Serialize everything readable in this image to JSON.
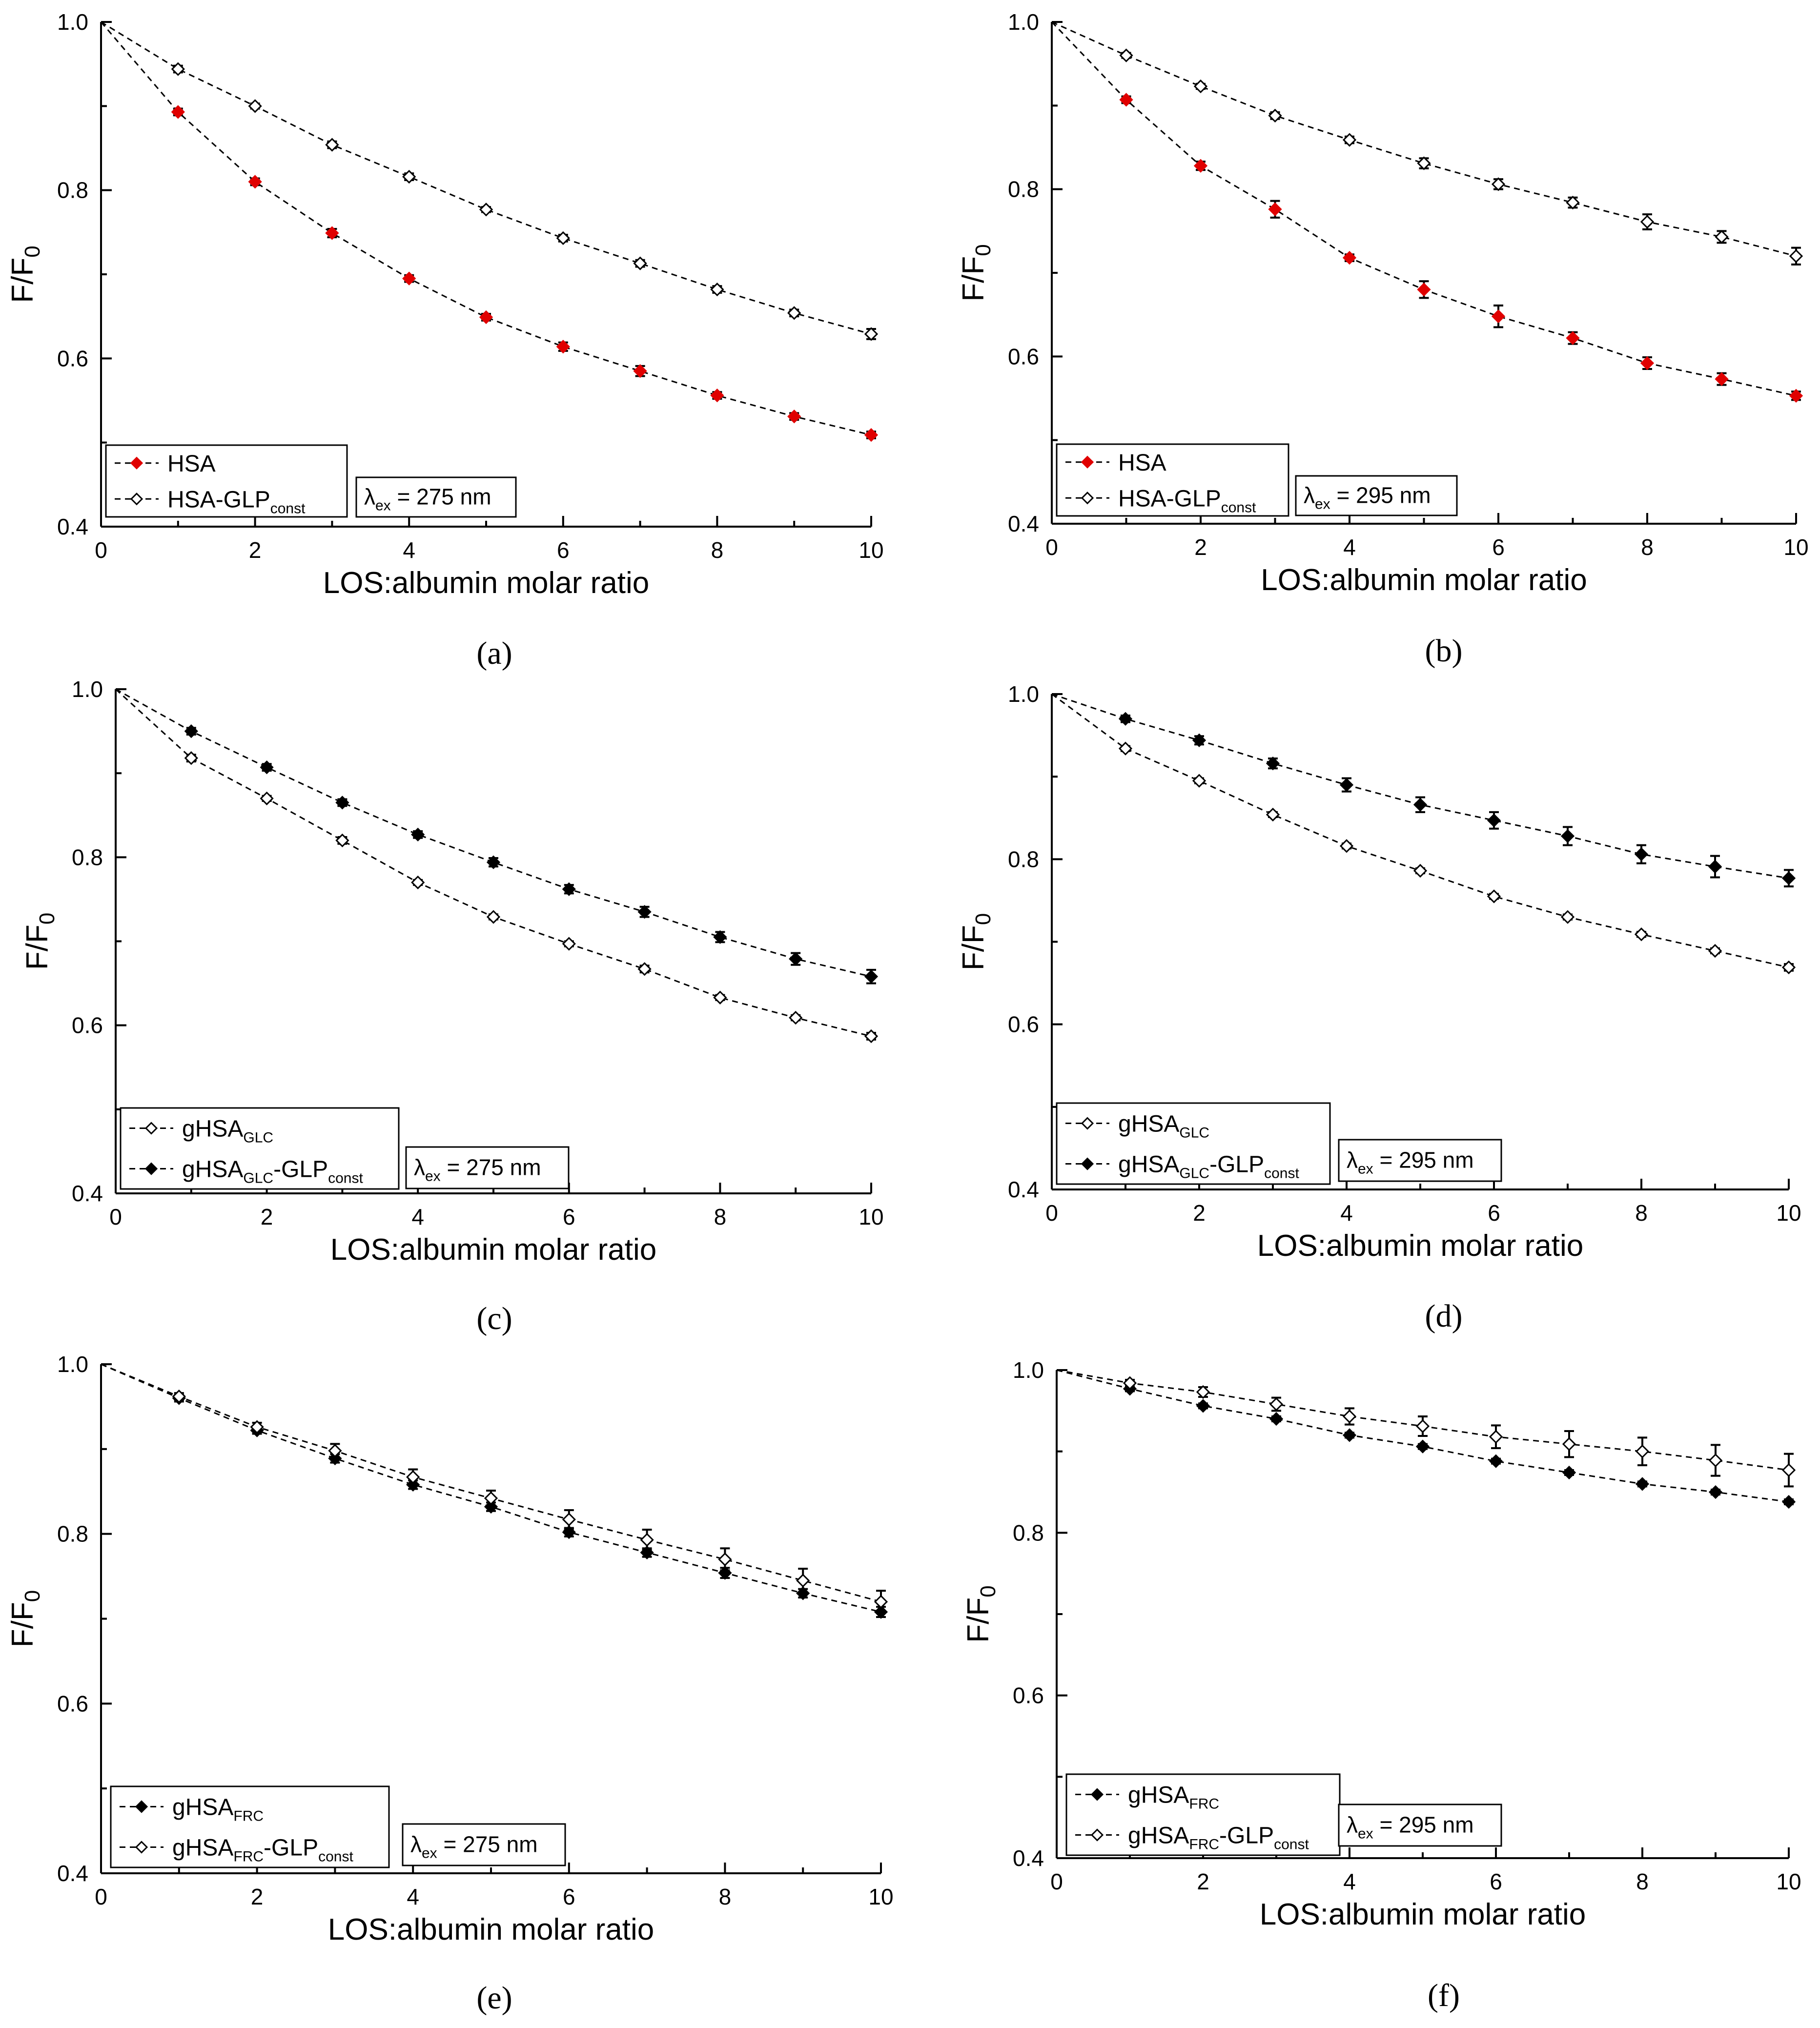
{
  "chart_data": [
    {
      "type": "line",
      "panel_label": "(a)",
      "xlabel": "LOS:albumin molar ratio",
      "ylabel": {
        "main": "F/F",
        "sub": "0"
      },
      "xlim": [
        0,
        10
      ],
      "ylim": [
        0.4,
        1.0
      ],
      "xticks": [
        "0",
        "2",
        "4",
        "6",
        "8",
        "10"
      ],
      "yticks": [
        "0.4",
        "0.6",
        "0.8",
        "1.0"
      ],
      "annotation": {
        "prefix": "λ",
        "sub": "ex",
        "suffix": " = 275 nm"
      },
      "legend_position": "bottom-left",
      "series": [
        {
          "name": "HSA",
          "sub": "",
          "suffix": "",
          "marker": "filled-diamond",
          "color": "#e00000",
          "x": [
            0,
            1,
            2,
            3,
            4,
            5,
            6,
            7,
            8,
            9,
            10
          ],
          "y": [
            1.0,
            0.893,
            0.81,
            0.749,
            0.695,
            0.649,
            0.614,
            0.585,
            0.556,
            0.531,
            0.509
          ],
          "err": [
            0,
            0.004,
            0.004,
            0.005,
            0.004,
            0.004,
            0.005,
            0.006,
            0.004,
            0.004,
            0.004
          ]
        },
        {
          "name": "HSA-GLP",
          "sub": "const",
          "suffix": "",
          "marker": "open-diamond",
          "color": "#000000",
          "x": [
            0,
            1,
            2,
            3,
            4,
            5,
            6,
            7,
            8,
            9,
            10
          ],
          "y": [
            1.0,
            0.944,
            0.9,
            0.854,
            0.816,
            0.777,
            0.743,
            0.713,
            0.682,
            0.654,
            0.629
          ],
          "err": [
            0,
            0.004,
            0.003,
            0.004,
            0.004,
            0.003,
            0.004,
            0.004,
            0.004,
            0.004,
            0.006
          ]
        }
      ]
    },
    {
      "type": "line",
      "panel_label": "(b)",
      "xlabel": "LOS:albumin molar ratio",
      "ylabel": {
        "main": "F/F",
        "sub": "0"
      },
      "xlim": [
        0,
        10
      ],
      "ylim": [
        0.4,
        1.0
      ],
      "xticks": [
        "0",
        "2",
        "4",
        "6",
        "8",
        "10"
      ],
      "yticks": [
        "0.4",
        "0.6",
        "0.8",
        "1.0"
      ],
      "annotation": {
        "prefix": "λ",
        "sub": "ex",
        "suffix": " = 295 nm"
      },
      "legend_position": "bottom-left",
      "series": [
        {
          "name": "HSA",
          "sub": "",
          "suffix": "",
          "marker": "filled-diamond",
          "color": "#e00000",
          "x": [
            0,
            1,
            2,
            3,
            4,
            5,
            6,
            7,
            8,
            9,
            10
          ],
          "y": [
            1.0,
            0.907,
            0.828,
            0.776,
            0.718,
            0.68,
            0.648,
            0.622,
            0.592,
            0.573,
            0.553
          ],
          "err": [
            0,
            0.004,
            0.005,
            0.01,
            0.004,
            0.01,
            0.013,
            0.007,
            0.007,
            0.007,
            0.005
          ]
        },
        {
          "name": "HSA-GLP",
          "sub": "const",
          "suffix": "",
          "marker": "open-diamond",
          "color": "#000000",
          "x": [
            0,
            1,
            2,
            3,
            4,
            5,
            6,
            7,
            8,
            9,
            10
          ],
          "y": [
            1.0,
            0.96,
            0.923,
            0.888,
            0.859,
            0.831,
            0.806,
            0.784,
            0.761,
            0.743,
            0.72
          ],
          "err": [
            0,
            0.003,
            0.003,
            0.004,
            0.004,
            0.006,
            0.006,
            0.006,
            0.009,
            0.007,
            0.01
          ]
        }
      ]
    },
    {
      "type": "line",
      "panel_label": "(c)",
      "xlabel": "LOS:albumin molar ratio",
      "ylabel": {
        "main": "F/F",
        "sub": "0"
      },
      "xlim": [
        0,
        10
      ],
      "ylim": [
        0.4,
        1.0
      ],
      "xticks": [
        "0",
        "2",
        "4",
        "6",
        "8",
        "10"
      ],
      "yticks": [
        "0.4",
        "0.6",
        "0.8",
        "1.0"
      ],
      "annotation": {
        "prefix": "λ",
        "sub": "ex",
        "suffix": " = 275 nm"
      },
      "legend_position": "bottom-left",
      "series": [
        {
          "name": "gHSA",
          "sub": "GLC",
          "suffix": "",
          "marker": "open-diamond",
          "color": "#000000",
          "x": [
            0,
            1,
            2,
            3,
            4,
            5,
            6,
            7,
            8,
            9,
            10
          ],
          "y": [
            1.0,
            0.918,
            0.87,
            0.82,
            0.77,
            0.729,
            0.697,
            0.667,
            0.633,
            0.609,
            0.587
          ],
          "err": [
            0,
            0.004,
            0.003,
            0.004,
            0.003,
            0.003,
            0.003,
            0.004,
            0.003,
            0.003,
            0.004
          ]
        },
        {
          "name": "gHSA",
          "sub": "GLC",
          "suffix": "-GLP",
          "suffix_sub": "const",
          "marker": "filled-diamond",
          "color": "#000000",
          "x": [
            0,
            1,
            2,
            3,
            4,
            5,
            6,
            7,
            8,
            9,
            10
          ],
          "y": [
            1.0,
            0.95,
            0.907,
            0.865,
            0.827,
            0.794,
            0.762,
            0.735,
            0.705,
            0.679,
            0.658
          ],
          "err": [
            0,
            0.004,
            0.004,
            0.004,
            0.004,
            0.005,
            0.005,
            0.006,
            0.006,
            0.007,
            0.008
          ]
        }
      ]
    },
    {
      "type": "line",
      "panel_label": "(d)",
      "xlabel": "LOS:albumin molar ratio",
      "ylabel": {
        "main": "F/F",
        "sub": "0"
      },
      "xlim": [
        0,
        10
      ],
      "ylim": [
        0.4,
        1.0
      ],
      "xticks": [
        "0",
        "2",
        "4",
        "6",
        "8",
        "10"
      ],
      "yticks": [
        "0.4",
        "0.6",
        "0.8",
        "1.0"
      ],
      "annotation": {
        "prefix": "λ",
        "sub": "ex",
        "suffix": " = 295 nm"
      },
      "legend_position": "bottom-left",
      "series": [
        {
          "name": "gHSA",
          "sub": "GLC",
          "suffix": "",
          "marker": "open-diamond",
          "color": "#000000",
          "x": [
            0,
            1,
            2,
            3,
            4,
            5,
            6,
            7,
            8,
            9,
            10
          ],
          "y": [
            1.0,
            0.934,
            0.895,
            0.854,
            0.816,
            0.786,
            0.755,
            0.73,
            0.709,
            0.689,
            0.669
          ],
          "err": [
            0,
            0.003,
            0.003,
            0.003,
            0.003,
            0.003,
            0.003,
            0.003,
            0.003,
            0.003,
            0.004
          ]
        },
        {
          "name": "gHSA",
          "sub": "GLC",
          "suffix": "-GLP",
          "suffix_sub": "const",
          "marker": "filled-diamond",
          "color": "#000000",
          "x": [
            0,
            1,
            2,
            3,
            4,
            5,
            6,
            7,
            8,
            9,
            10
          ],
          "y": [
            1.0,
            0.97,
            0.944,
            0.916,
            0.89,
            0.866,
            0.847,
            0.828,
            0.806,
            0.791,
            0.777
          ],
          "err": [
            0,
            0.004,
            0.005,
            0.006,
            0.008,
            0.009,
            0.01,
            0.011,
            0.011,
            0.013,
            0.01
          ]
        }
      ]
    },
    {
      "type": "line",
      "panel_label": "(e)",
      "xlabel": "LOS:albumin molar ratio",
      "ylabel": {
        "main": "F/F",
        "sub": "0"
      },
      "xlim": [
        0,
        10
      ],
      "ylim": [
        0.4,
        1.0
      ],
      "xticks": [
        "0",
        "2",
        "4",
        "6",
        "8",
        "10"
      ],
      "yticks": [
        "0.4",
        "0.6",
        "0.8",
        "1.0"
      ],
      "annotation": {
        "prefix": "λ",
        "sub": "ex",
        "suffix": " = 275 nm"
      },
      "legend_position": "bottom-left",
      "series": [
        {
          "name": "gHSA",
          "sub": "FRC",
          "suffix": "",
          "marker": "filled-diamond",
          "color": "#000000",
          "x": [
            0,
            1,
            2,
            3,
            4,
            5,
            6,
            7,
            8,
            9,
            10
          ],
          "y": [
            1.0,
            0.96,
            0.922,
            0.889,
            0.858,
            0.832,
            0.802,
            0.778,
            0.754,
            0.73,
            0.708
          ],
          "err": [
            0,
            0.004,
            0.004,
            0.005,
            0.005,
            0.005,
            0.005,
            0.005,
            0.006,
            0.005,
            0.006
          ]
        },
        {
          "name": "gHSA",
          "sub": "FRC",
          "suffix": "-GLP",
          "suffix_sub": "const",
          "marker": "open-diamond",
          "color": "#000000",
          "x": [
            0,
            1,
            2,
            3,
            4,
            5,
            6,
            7,
            8,
            9,
            10
          ],
          "y": [
            1.0,
            0.962,
            0.926,
            0.898,
            0.867,
            0.842,
            0.817,
            0.793,
            0.77,
            0.745,
            0.72
          ],
          "err": [
            0,
            0.004,
            0.005,
            0.008,
            0.009,
            0.009,
            0.011,
            0.012,
            0.013,
            0.014,
            0.013
          ]
        }
      ]
    },
    {
      "type": "line",
      "panel_label": "(f)",
      "xlabel": "LOS:albumin molar ratio",
      "ylabel": {
        "main": "F/F",
        "sub": "0"
      },
      "xlim": [
        0,
        10
      ],
      "ylim": [
        0.4,
        1.0
      ],
      "xticks": [
        "0",
        "2",
        "4",
        "6",
        "8",
        "10"
      ],
      "yticks": [
        "0.4",
        "0.6",
        "0.8",
        "1.0"
      ],
      "annotation": {
        "prefix": "λ",
        "sub": "ex",
        "suffix": " = 295 nm"
      },
      "legend_position": "bottom-left",
      "series": [
        {
          "name": "gHSA",
          "sub": "FRC",
          "suffix": "",
          "marker": "filled-diamond",
          "color": "#000000",
          "x": [
            0,
            1,
            2,
            3,
            4,
            5,
            6,
            7,
            8,
            9,
            10
          ],
          "y": [
            1.0,
            0.977,
            0.956,
            0.94,
            0.92,
            0.906,
            0.888,
            0.874,
            0.86,
            0.85,
            0.838
          ],
          "err": [
            0,
            0.003,
            0.003,
            0.003,
            0.003,
            0.003,
            0.003,
            0.003,
            0.003,
            0.003,
            0.003
          ]
        },
        {
          "name": "gHSA",
          "sub": "FRC",
          "suffix": "-GLP",
          "suffix_sub": "const",
          "marker": "open-diamond",
          "color": "#000000",
          "x": [
            0,
            1,
            2,
            3,
            4,
            5,
            6,
            7,
            8,
            9,
            10
          ],
          "y": [
            1.0,
            0.984,
            0.973,
            0.958,
            0.943,
            0.931,
            0.918,
            0.909,
            0.9,
            0.889,
            0.877
          ],
          "err": [
            0,
            0.004,
            0.006,
            0.008,
            0.01,
            0.012,
            0.014,
            0.016,
            0.017,
            0.019,
            0.02
          ]
        }
      ]
    }
  ]
}
